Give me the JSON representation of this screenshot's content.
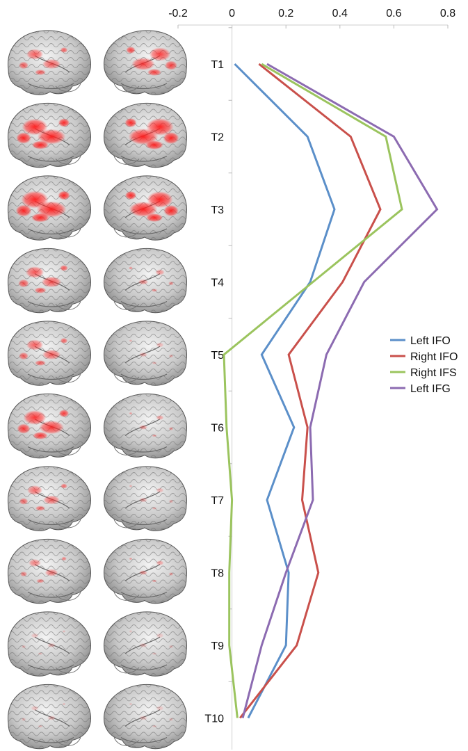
{
  "chart_data": {
    "type": "line",
    "orientation": "horizontal-values-vertical-categories",
    "categories": [
      "T1",
      "T2",
      "T3",
      "T4",
      "T5",
      "T6",
      "T7",
      "T8",
      "T9",
      "T10"
    ],
    "xlim": [
      -0.2,
      0.8
    ],
    "x_ticks": [
      "-0.2",
      "0",
      "0.2",
      "0.4",
      "0.6",
      "0.8"
    ],
    "x_tick_values": [
      -0.2,
      0,
      0.2,
      0.4,
      0.6,
      0.8
    ],
    "axis_position": "top",
    "legend_position": "right",
    "grid": false,
    "series": [
      {
        "name": "Left IFO",
        "color": "#5b8fc9",
        "values": [
          0.01,
          0.28,
          0.38,
          0.29,
          0.11,
          0.23,
          0.13,
          0.21,
          0.2,
          0.06
        ]
      },
      {
        "name": "Right IFO",
        "color": "#c9504b",
        "values": [
          0.1,
          0.44,
          0.55,
          0.41,
          0.21,
          0.28,
          0.26,
          0.32,
          0.24,
          0.03
        ]
      },
      {
        "name": "Right IFS",
        "color": "#9bc45e",
        "values": [
          0.11,
          0.57,
          0.63,
          0.3,
          -0.03,
          -0.02,
          0.0,
          -0.01,
          -0.01,
          0.02
        ]
      },
      {
        "name": "Left IFG",
        "color": "#8c6bb1",
        "values": [
          0.13,
          0.6,
          0.76,
          0.49,
          0.35,
          0.29,
          0.3,
          0.2,
          0.11,
          0.04
        ]
      }
    ]
  },
  "brain_panels": {
    "rows": [
      "T1",
      "T2",
      "T3",
      "T4",
      "T5",
      "T6",
      "T7",
      "T8",
      "T9",
      "T10"
    ],
    "activation_color": "#ee1c1c",
    "activation_levels_left": [
      0.55,
      0.85,
      0.9,
      0.6,
      0.55,
      0.75,
      0.5,
      0.4,
      0.08,
      0.08
    ],
    "activation_levels_right": [
      0.7,
      0.9,
      0.85,
      0.3,
      0.15,
      0.25,
      0.15,
      0.25,
      0.05,
      0.05
    ]
  }
}
